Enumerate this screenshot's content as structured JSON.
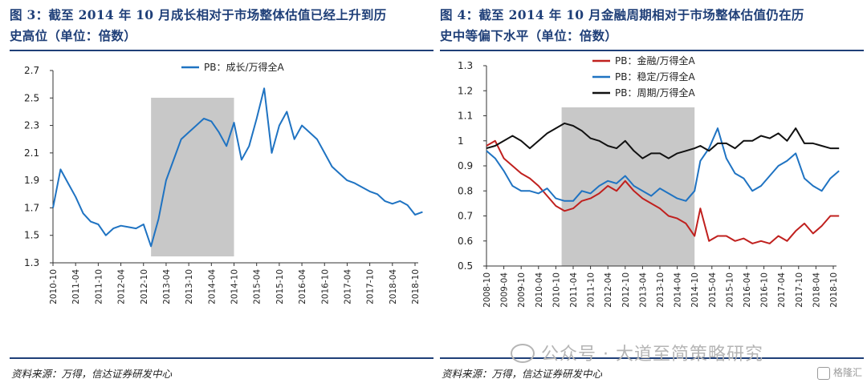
{
  "left": {
    "title_line1": "图 3：截至 2014 年 10 月成长相对于市场整体估值已经上升到历",
    "title_line2": "史高位（单位：倍数）",
    "source": "资料来源：万得，信达证券研发中心"
  },
  "right": {
    "title_line1": "图 4：截至 2014 年 10 月金融周期相对于市场整体估值仍在历",
    "title_line2": "史中等偏下水平（单位：倍数）",
    "source": "资料来源：万得，信达证券研发中心"
  },
  "watermark": "公众号 · 大道至简策略研究",
  "brand": "格隆汇",
  "chart_data": [
    {
      "type": "line",
      "ylim": [
        1.3,
        2.7
      ],
      "yticks": [
        "2.7",
        "2.5",
        "2.3",
        "2.1",
        "1.9",
        "1.7",
        "1.5",
        "1.3"
      ],
      "xticks": [
        "2010-10",
        "2011-04",
        "2011-10",
        "2012-04",
        "2012-10",
        "2013-04",
        "2013-10",
        "2014-04",
        "2014-10",
        "2015-04",
        "2015-10",
        "2016-04",
        "2016-10",
        "2017-04",
        "2017-10",
        "2018-04",
        "2018-10"
      ],
      "shade": {
        "from": "2012-12",
        "to": "2014-10"
      },
      "legend_position": "top-center",
      "colors": {
        "growth": "#1f73c2",
        "shade": "#c8c8c8"
      },
      "series": [
        {
          "name": "PB：成长/万得全A",
          "color": "#1f73c2",
          "x": [
            "2010-10",
            "2010-12",
            "2011-02",
            "2011-04",
            "2011-06",
            "2011-08",
            "2011-10",
            "2011-12",
            "2012-02",
            "2012-04",
            "2012-06",
            "2012-08",
            "2012-10",
            "2012-12",
            "2013-02",
            "2013-04",
            "2013-06",
            "2013-08",
            "2013-10",
            "2013-12",
            "2014-02",
            "2014-04",
            "2014-06",
            "2014-08",
            "2014-10",
            "2014-12",
            "2015-02",
            "2015-04",
            "2015-06",
            "2015-08",
            "2015-10",
            "2015-12",
            "2016-02",
            "2016-04",
            "2016-06",
            "2016-08",
            "2016-10",
            "2016-12",
            "2017-02",
            "2017-04",
            "2017-06",
            "2017-08",
            "2017-10",
            "2017-12",
            "2018-02",
            "2018-04",
            "2018-06",
            "2018-08",
            "2018-10",
            "2018-12"
          ],
          "values": [
            1.7,
            1.98,
            1.88,
            1.78,
            1.66,
            1.6,
            1.58,
            1.5,
            1.55,
            1.57,
            1.56,
            1.55,
            1.58,
            1.42,
            1.62,
            1.9,
            2.05,
            2.2,
            2.25,
            2.3,
            2.35,
            2.33,
            2.25,
            2.15,
            2.32,
            2.05,
            2.15,
            2.35,
            2.57,
            2.1,
            2.3,
            2.4,
            2.2,
            2.3,
            2.25,
            2.2,
            2.1,
            2.0,
            1.95,
            1.9,
            1.88,
            1.85,
            1.82,
            1.8,
            1.75,
            1.73,
            1.75,
            1.72,
            1.65,
            1.67
          ]
        }
      ]
    },
    {
      "type": "line",
      "ylim": [
        0.5,
        1.3
      ],
      "yticks": [
        "1.3",
        "1.2",
        "1.1",
        "1",
        "0.9",
        "0.8",
        "0.7",
        "0.6",
        "0.5"
      ],
      "xticks": [
        "2008-10",
        "2009-04",
        "2009-10",
        "2010-04",
        "2010-10",
        "2011-04",
        "2011-10",
        "2012-04",
        "2012-10",
        "2013-04",
        "2013-10",
        "2014-04",
        "2014-10",
        "2015-04",
        "2015-10",
        "2016-04",
        "2016-10",
        "2017-04",
        "2017-10",
        "2018-04",
        "2018-10"
      ],
      "shade": {
        "from": "2010-12",
        "to": "2014-10"
      },
      "legend_position": "top-center",
      "series": [
        {
          "name": "PB：金融/万得全A",
          "color": "#c0201e",
          "x": [
            "2008-10",
            "2009-01",
            "2009-04",
            "2009-07",
            "2009-10",
            "2010-01",
            "2010-04",
            "2010-07",
            "2010-10",
            "2011-01",
            "2011-04",
            "2011-07",
            "2011-10",
            "2012-01",
            "2012-04",
            "2012-07",
            "2012-10",
            "2013-01",
            "2013-04",
            "2013-07",
            "2013-10",
            "2014-01",
            "2014-04",
            "2014-07",
            "2014-10",
            "2014-12",
            "2015-03",
            "2015-06",
            "2015-09",
            "2015-12",
            "2016-03",
            "2016-06",
            "2016-09",
            "2016-12",
            "2017-03",
            "2017-06",
            "2017-09",
            "2017-12",
            "2018-03",
            "2018-06",
            "2018-09",
            "2018-12"
          ],
          "values": [
            0.98,
            1.0,
            0.93,
            0.9,
            0.87,
            0.85,
            0.82,
            0.78,
            0.74,
            0.72,
            0.73,
            0.76,
            0.77,
            0.79,
            0.82,
            0.8,
            0.84,
            0.8,
            0.77,
            0.75,
            0.73,
            0.7,
            0.69,
            0.67,
            0.62,
            0.73,
            0.6,
            0.62,
            0.62,
            0.6,
            0.61,
            0.59,
            0.6,
            0.59,
            0.62,
            0.6,
            0.64,
            0.67,
            0.63,
            0.66,
            0.7,
            0.7
          ]
        },
        {
          "name": "PB：稳定/万得全A",
          "color": "#1f73c2",
          "x": [
            "2008-10",
            "2009-01",
            "2009-04",
            "2009-07",
            "2009-10",
            "2010-01",
            "2010-04",
            "2010-07",
            "2010-10",
            "2011-01",
            "2011-04",
            "2011-07",
            "2011-10",
            "2012-01",
            "2012-04",
            "2012-07",
            "2012-10",
            "2013-01",
            "2013-04",
            "2013-07",
            "2013-10",
            "2014-01",
            "2014-04",
            "2014-07",
            "2014-10",
            "2014-12",
            "2015-03",
            "2015-06",
            "2015-09",
            "2015-12",
            "2016-03",
            "2016-06",
            "2016-09",
            "2016-12",
            "2017-03",
            "2017-06",
            "2017-09",
            "2017-12",
            "2018-03",
            "2018-06",
            "2018-09",
            "2018-12"
          ],
          "values": [
            0.96,
            0.93,
            0.88,
            0.82,
            0.8,
            0.8,
            0.79,
            0.81,
            0.77,
            0.76,
            0.76,
            0.8,
            0.79,
            0.82,
            0.84,
            0.83,
            0.86,
            0.82,
            0.8,
            0.78,
            0.81,
            0.79,
            0.77,
            0.76,
            0.8,
            0.92,
            0.97,
            1.05,
            0.93,
            0.87,
            0.85,
            0.8,
            0.82,
            0.86,
            0.9,
            0.92,
            0.95,
            0.85,
            0.82,
            0.8,
            0.85,
            0.88
          ]
        },
        {
          "name": "PB：周期/万得全A",
          "color": "#111111",
          "x": [
            "2008-10",
            "2009-01",
            "2009-04",
            "2009-07",
            "2009-10",
            "2010-01",
            "2010-04",
            "2010-07",
            "2010-10",
            "2011-01",
            "2011-04",
            "2011-07",
            "2011-10",
            "2012-01",
            "2012-04",
            "2012-07",
            "2012-10",
            "2013-01",
            "2013-04",
            "2013-07",
            "2013-10",
            "2014-01",
            "2014-04",
            "2014-07",
            "2014-10",
            "2014-12",
            "2015-03",
            "2015-06",
            "2015-09",
            "2015-12",
            "2016-03",
            "2016-06",
            "2016-09",
            "2016-12",
            "2017-03",
            "2017-06",
            "2017-09",
            "2017-12",
            "2018-03",
            "2018-06",
            "2018-09",
            "2018-12"
          ],
          "values": [
            0.97,
            0.98,
            1.0,
            1.02,
            1.0,
            0.97,
            1.0,
            1.03,
            1.05,
            1.07,
            1.06,
            1.04,
            1.01,
            1.0,
            0.98,
            0.97,
            1.0,
            0.96,
            0.93,
            0.95,
            0.95,
            0.93,
            0.95,
            0.96,
            0.97,
            0.98,
            0.96,
            0.99,
            0.99,
            0.97,
            1.0,
            1.0,
            1.02,
            1.01,
            1.03,
            1.0,
            1.05,
            0.99,
            0.99,
            0.98,
            0.97,
            0.97
          ]
        }
      ]
    }
  ]
}
